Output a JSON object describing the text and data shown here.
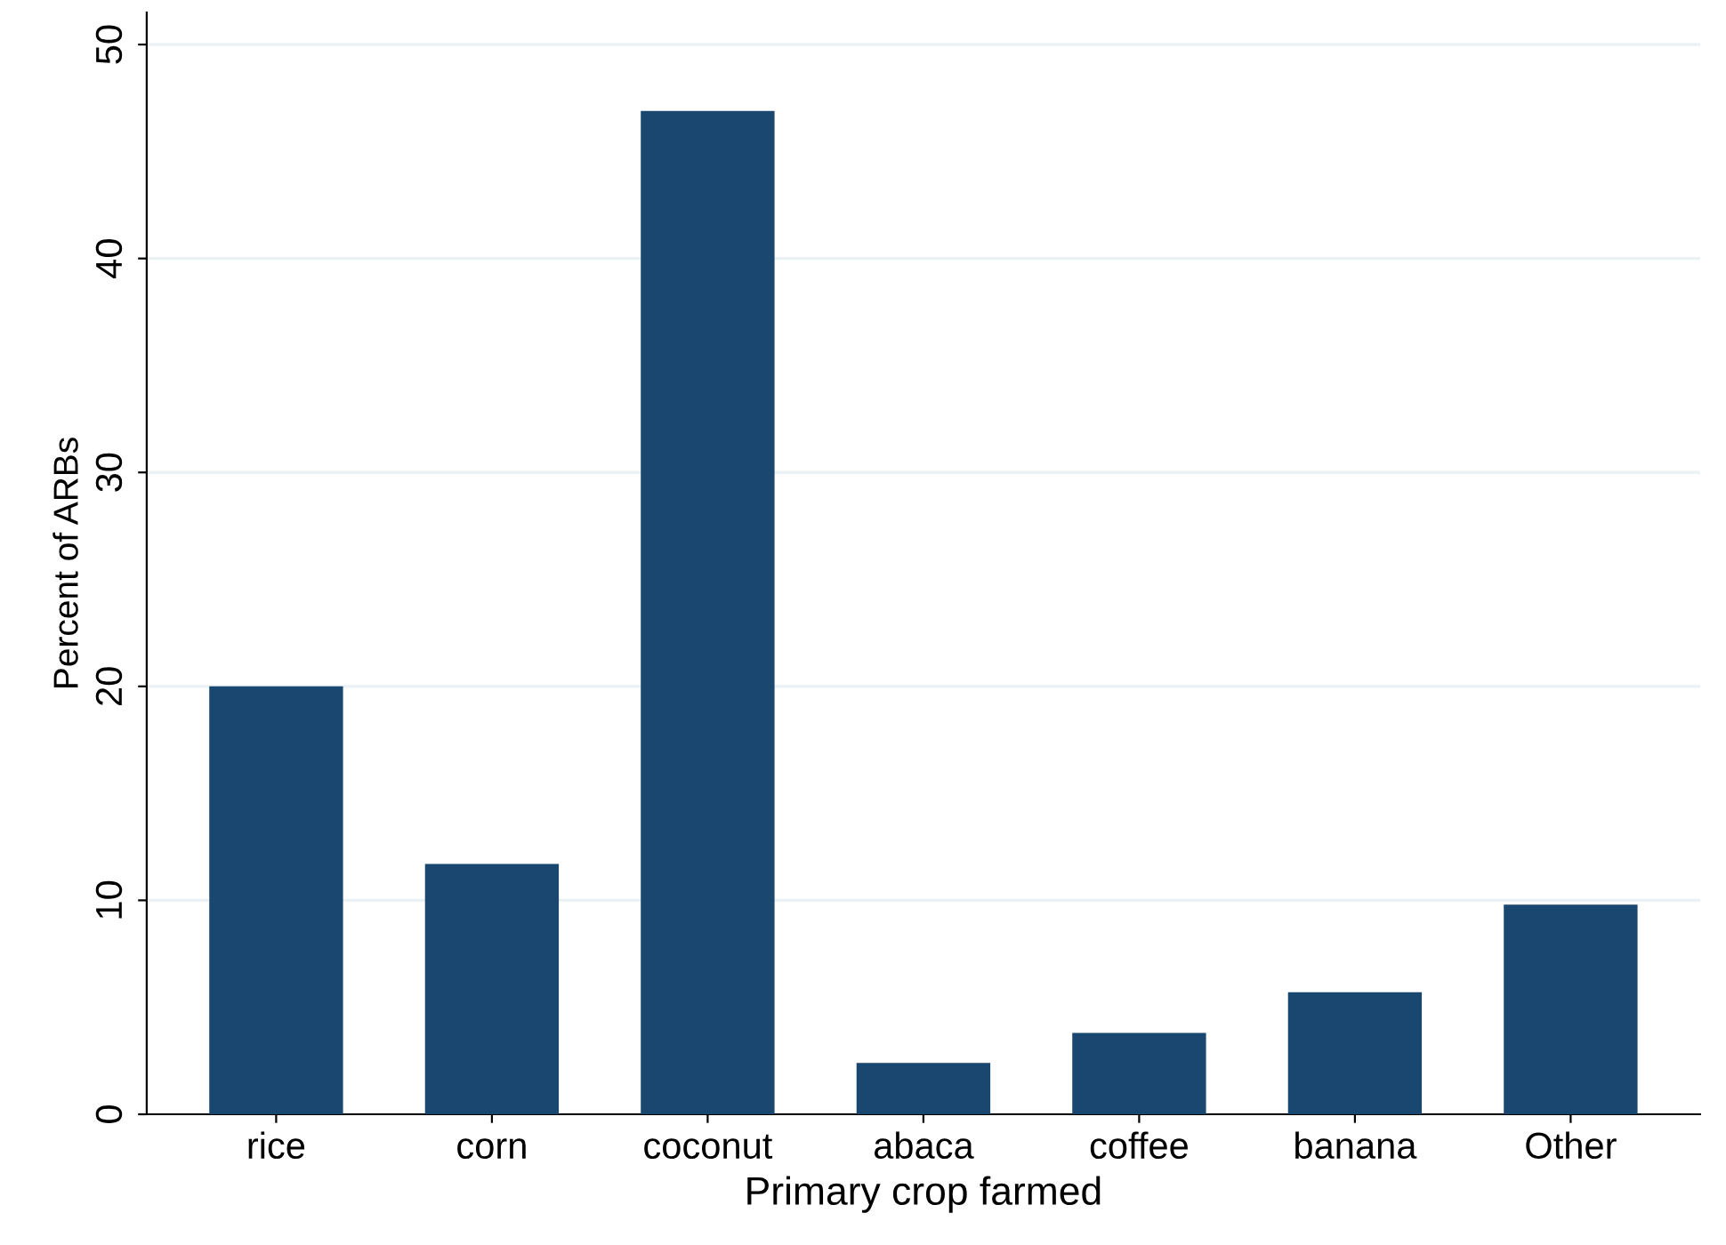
{
  "chart_data": {
    "type": "bar",
    "xlabel": "Primary crop farmed",
    "ylabel": "Percent of ARBs",
    "categories": [
      "rice",
      "corn",
      "coconut",
      "abaca",
      "coffee",
      "banana",
      "Other"
    ],
    "values": [
      20.0,
      11.7,
      46.9,
      2.4,
      3.8,
      5.7,
      9.8
    ],
    "color": "#1a476f",
    "ylim": [
      0,
      51.5
    ],
    "yticks": [
      0,
      10,
      20,
      30,
      40,
      50
    ],
    "grid": "y",
    "legend": false
  }
}
